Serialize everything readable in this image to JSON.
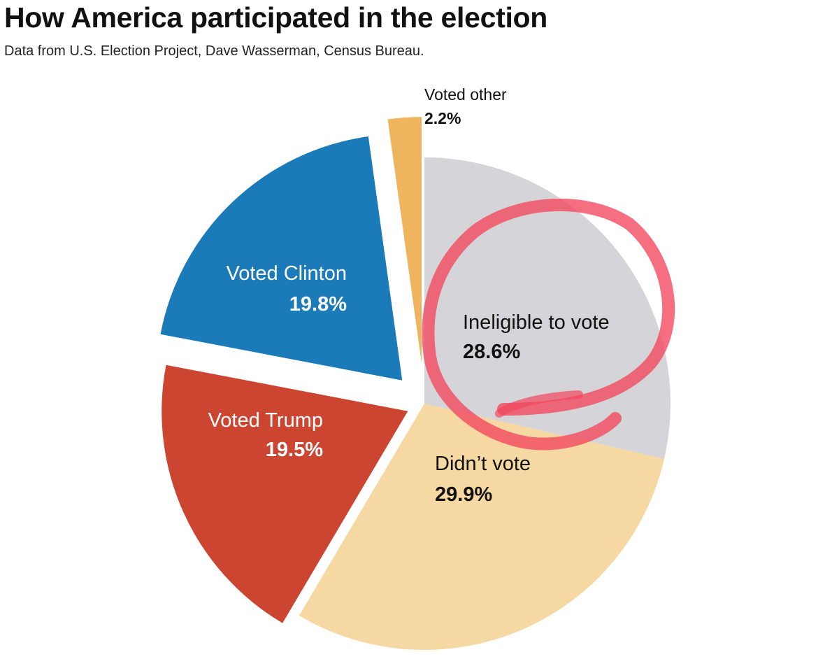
{
  "header": {
    "title": "How America participated in the election",
    "subtitle": "Data from U.S. Election Project, Dave Wasserman, Census Bureau."
  },
  "chart_data": {
    "type": "pie",
    "title": "How America participated in the election",
    "subtitle": "Data from U.S. Election Project, Dave Wasserman, Census Bureau.",
    "unit": "%",
    "start": "12 o'clock, clockwise",
    "slices": [
      {
        "key": "ineligible",
        "label": "Ineligible to vote",
        "display": "28.6%",
        "value": 28.6,
        "color": "#d4d4d9",
        "text_color": "#111111",
        "exploded": false
      },
      {
        "key": "didnt",
        "label": "Didn’t vote",
        "display": "29.9%",
        "value": 29.9,
        "color": "#f5d8a2",
        "text_color": "#111111",
        "exploded": false
      },
      {
        "key": "trump",
        "label": "Voted Trump",
        "display": "19.5%",
        "value": 19.5,
        "color": "#cc4530",
        "text_color": "#ffffff",
        "exploded": true
      },
      {
        "key": "clinton",
        "label": "Voted Clinton",
        "display": "19.8%",
        "value": 19.8,
        "color": "#1b7ab8",
        "text_color": "#ffffff",
        "exploded": true
      },
      {
        "key": "other",
        "label": "Voted other",
        "display": "2.2%",
        "value": 2.2,
        "color": "#efb45e",
        "text_color": "#111111",
        "exploded": true
      }
    ],
    "annotation": {
      "type": "hand-drawn circle",
      "color": "#f2475c",
      "encircles": "Ineligible to vote"
    }
  }
}
